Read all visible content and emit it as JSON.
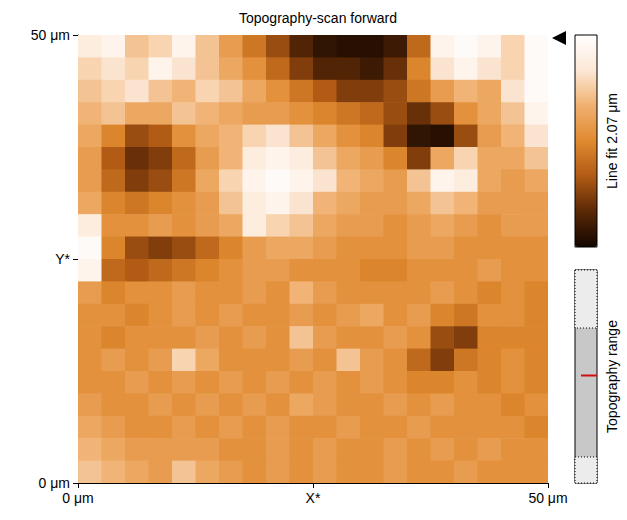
{
  "chart_data": {
    "type": "heatmap",
    "title": "Topography-scan forward",
    "xlim": [
      0,
      50
    ],
    "ylim": [
      0,
      50
    ],
    "xticks": [
      {
        "value": 0,
        "label": "0 μm"
      },
      {
        "value": 25,
        "label": "X*"
      },
      {
        "value": 50,
        "label": "50 μm"
      }
    ],
    "yticks": [
      {
        "value": 0,
        "label": "0 μm"
      },
      {
        "value": 25,
        "label": "Y*"
      },
      {
        "value": 50,
        "label": "50 μm"
      }
    ],
    "grid": false,
    "cells": [
      [
        1.8,
        1.9,
        1.5,
        1.6,
        1.9,
        1.5,
        1.2,
        0.9,
        0.6,
        0.3,
        0.15,
        0.1,
        0.1,
        0.2,
        0.8,
        1.9,
        2.0,
        1.9,
        1.6,
        2.0
      ],
      [
        1.6,
        1.7,
        1.6,
        1.9,
        1.7,
        1.5,
        1.3,
        1.1,
        0.8,
        0.5,
        0.3,
        0.3,
        0.2,
        0.4,
        1.0,
        1.7,
        1.9,
        1.7,
        1.6,
        2.0
      ],
      [
        1.5,
        1.6,
        1.7,
        1.5,
        1.4,
        1.6,
        1.5,
        1.3,
        1.1,
        0.9,
        0.7,
        0.5,
        0.5,
        0.6,
        0.9,
        1.2,
        1.4,
        1.3,
        1.7,
        2.0
      ],
      [
        1.4,
        1.5,
        1.3,
        1.3,
        1.5,
        1.4,
        1.3,
        1.2,
        1.2,
        1.1,
        1.0,
        0.9,
        0.8,
        0.6,
        0.4,
        0.6,
        1.1,
        1.3,
        1.5,
        1.9
      ],
      [
        1.3,
        1.0,
        0.6,
        0.7,
        1.1,
        1.3,
        1.4,
        1.6,
        1.7,
        1.5,
        1.3,
        1.1,
        1.0,
        0.5,
        0.15,
        0.1,
        0.6,
        1.2,
        1.4,
        1.7
      ],
      [
        1.2,
        0.7,
        0.4,
        0.5,
        0.8,
        1.2,
        1.4,
        1.8,
        1.9,
        1.8,
        1.5,
        1.3,
        1.2,
        1.0,
        0.5,
        1.3,
        1.6,
        1.3,
        1.3,
        1.5
      ],
      [
        1.2,
        0.8,
        0.5,
        0.6,
        0.9,
        1.3,
        1.6,
        1.9,
        2.0,
        1.9,
        1.7,
        1.4,
        1.3,
        1.2,
        1.5,
        1.9,
        1.8,
        1.3,
        1.2,
        1.3
      ],
      [
        1.3,
        1.0,
        0.9,
        1.0,
        1.1,
        1.2,
        1.5,
        1.8,
        1.9,
        1.7,
        1.4,
        1.3,
        1.2,
        1.2,
        1.3,
        1.5,
        1.4,
        1.2,
        1.2,
        1.2
      ],
      [
        1.8,
        1.1,
        1.1,
        1.2,
        1.1,
        1.2,
        1.3,
        1.8,
        1.6,
        1.5,
        1.3,
        1.2,
        1.2,
        1.1,
        1.2,
        1.3,
        1.2,
        1.1,
        1.2,
        1.2
      ],
      [
        2.0,
        1.0,
        0.6,
        0.5,
        0.6,
        0.8,
        1.0,
        1.2,
        1.3,
        1.3,
        1.2,
        1.1,
        1.1,
        1.1,
        1.2,
        1.2,
        1.1,
        1.1,
        1.1,
        1.1
      ],
      [
        1.9,
        0.8,
        0.7,
        0.8,
        0.9,
        1.0,
        1.1,
        1.2,
        1.2,
        1.1,
        1.1,
        1.1,
        1.0,
        1.0,
        1.1,
        1.1,
        1.1,
        1.2,
        1.1,
        1.1
      ],
      [
        1.2,
        1.0,
        1.1,
        1.1,
        1.2,
        1.1,
        1.1,
        1.2,
        1.1,
        1.4,
        1.2,
        1.1,
        1.1,
        1.1,
        1.1,
        1.2,
        1.1,
        1.0,
        1.1,
        1.0
      ],
      [
        1.1,
        1.1,
        1.0,
        1.1,
        1.2,
        1.1,
        1.2,
        1.1,
        1.1,
        1.2,
        1.1,
        1.2,
        1.3,
        1.1,
        1.2,
        1.0,
        0.9,
        1.1,
        1.1,
        1.0
      ],
      [
        1.1,
        1.0,
        1.1,
        1.1,
        1.1,
        1.2,
        1.1,
        1.2,
        1.1,
        1.5,
        1.2,
        1.1,
        1.1,
        1.2,
        1.1,
        0.6,
        0.5,
        1.0,
        1.0,
        1.0
      ],
      [
        1.1,
        1.2,
        1.1,
        1.2,
        1.6,
        1.3,
        1.1,
        1.1,
        1.1,
        1.2,
        1.1,
        1.5,
        1.2,
        1.1,
        0.8,
        0.5,
        0.9,
        1.0,
        1.1,
        1.0
      ],
      [
        1.1,
        1.1,
        1.2,
        1.1,
        1.2,
        1.1,
        1.2,
        1.1,
        1.2,
        1.1,
        1.2,
        1.1,
        1.2,
        1.1,
        1.0,
        1.0,
        1.1,
        1.0,
        1.1,
        1.0
      ],
      [
        1.2,
        1.1,
        1.1,
        1.2,
        1.1,
        1.2,
        1.1,
        1.2,
        1.1,
        1.3,
        1.2,
        1.1,
        1.1,
        1.2,
        1.1,
        1.2,
        1.1,
        1.1,
        1.0,
        1.1
      ],
      [
        1.3,
        1.2,
        1.1,
        1.1,
        1.2,
        1.1,
        1.2,
        1.1,
        1.2,
        1.1,
        1.1,
        1.2,
        1.1,
        1.1,
        1.2,
        1.1,
        1.1,
        1.1,
        1.1,
        1.0
      ],
      [
        1.4,
        1.3,
        1.2,
        1.2,
        1.2,
        1.2,
        1.1,
        1.1,
        1.2,
        1.1,
        1.2,
        1.1,
        1.1,
        1.2,
        1.1,
        1.2,
        1.1,
        1.2,
        1.1,
        1.1
      ],
      [
        1.5,
        1.4,
        1.3,
        1.2,
        1.5,
        1.3,
        1.2,
        1.1,
        1.2,
        1.1,
        1.2,
        1.1,
        1.1,
        1.2,
        1.1,
        1.1,
        1.2,
        1.1,
        1.1,
        1.1
      ]
    ],
    "colorbar": {
      "range": [
        0,
        2.07
      ],
      "label": "Line fit 2.07 μm",
      "colors": [
        "#120600",
        "#5a2806",
        "#b05a14",
        "#e08a30",
        "#f0b070",
        "#fce8d6",
        "#ffffff"
      ]
    },
    "range_indicator": {
      "label": "Topography range"
    }
  }
}
